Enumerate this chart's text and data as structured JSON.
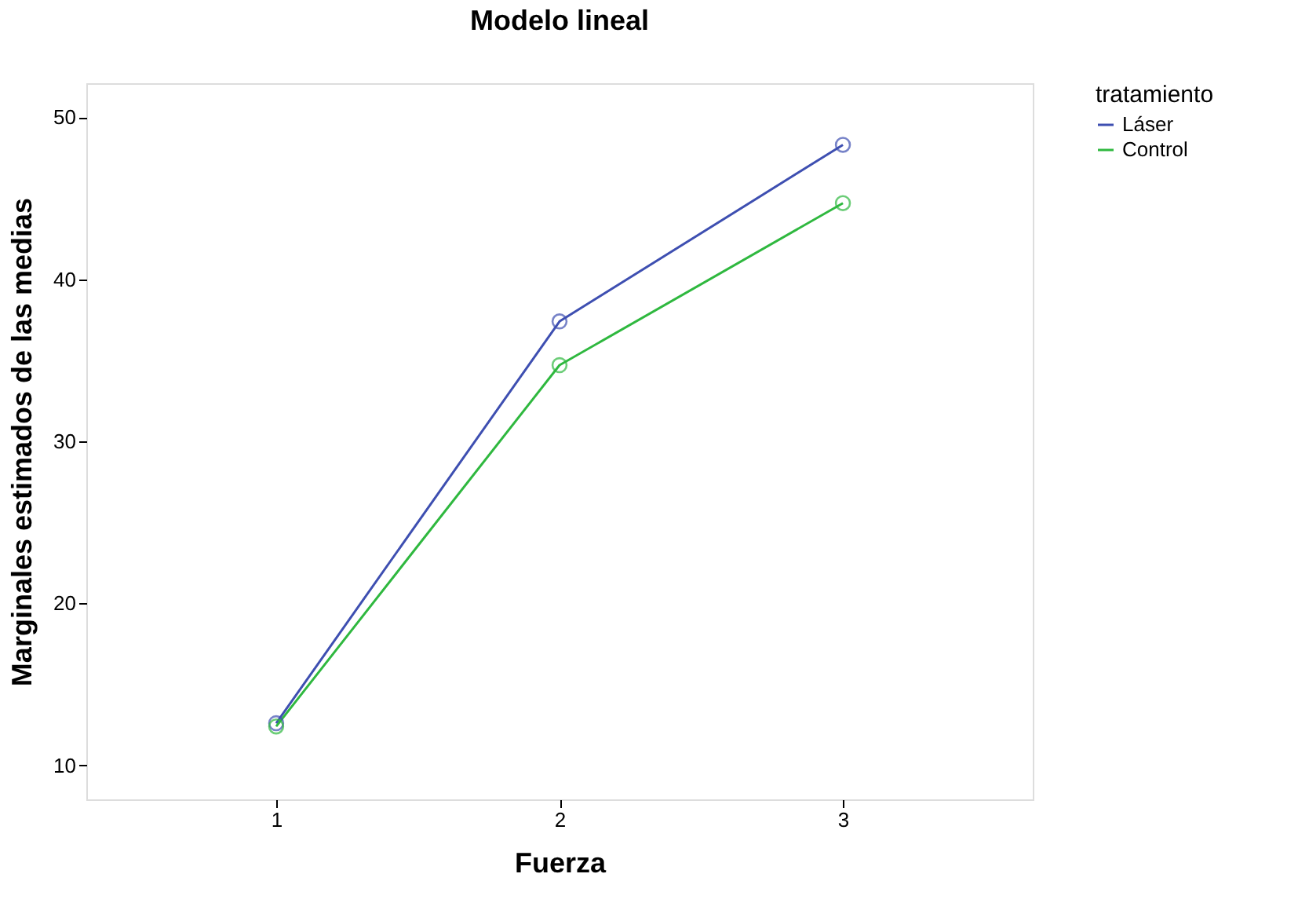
{
  "chart_data": {
    "type": "line",
    "title": "Modelo lineal",
    "xlabel": "Fuerza",
    "ylabel": "Marginales estimados de las medias",
    "legend_title": "tratamiento",
    "categories": [
      "1",
      "2",
      "3"
    ],
    "series": [
      {
        "name": "Láser",
        "color": "#3e4fb1",
        "values": [
          12.6,
          37.4,
          48.3
        ]
      },
      {
        "name": "Control",
        "color": "#2fb83f",
        "values": [
          12.4,
          34.7,
          44.7
        ]
      }
    ],
    "ylim": [
      7.9,
      52.1
    ],
    "yticks": [
      10,
      20,
      30,
      40,
      50
    ],
    "grid": false,
    "legend": "top right",
    "marker": "circle",
    "line_style": "solid"
  }
}
